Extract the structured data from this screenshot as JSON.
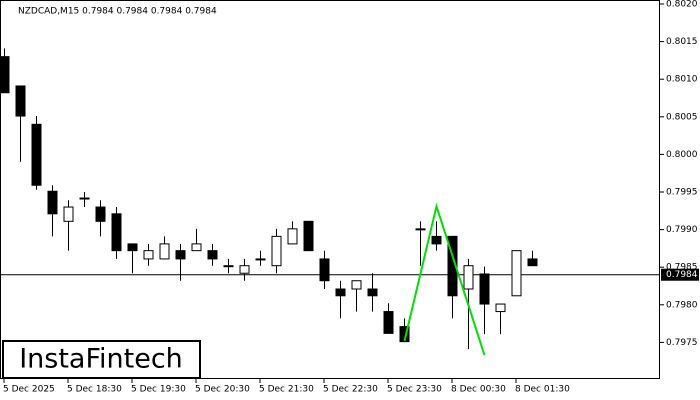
{
  "chart_data": {
    "type": "candlestick",
    "title": "NZDCAD,M15  0.7984 0.7984 0.7984 0.7984",
    "categories": [
      "5 Dec 2025",
      null,
      null,
      null,
      "5 Dec 18:30",
      null,
      null,
      null,
      "5 Dec 19:30",
      null,
      null,
      null,
      "5 Dec 20:30",
      null,
      null,
      null,
      "5 Dec 21:30",
      null,
      null,
      null,
      "5 Dec 22:30",
      null,
      null,
      null,
      "5 Dec 23:30",
      null,
      null,
      null,
      "8 Dec 00:30",
      null,
      null,
      null,
      "8 Dec 01:30",
      null
    ],
    "open": [
      0.8013,
      0.80091,
      0.8004,
      0.79951,
      0.79911,
      0.79942,
      0.7993,
      0.79921,
      0.79881,
      0.79861,
      0.79861,
      0.79872,
      0.79872,
      0.79872,
      0.79852,
      0.79842,
      0.79861,
      0.79852,
      0.79881,
      0.79911,
      0.79861,
      0.79821,
      0.79821,
      0.79821,
      0.79791,
      0.79771,
      0.79901,
      0.79891,
      0.79891,
      0.79821,
      0.79841,
      0.79791,
      0.79812,
      0.79861
    ],
    "high": [
      0.80141,
      0.80091,
      0.80051,
      0.79959,
      0.79939,
      0.7995,
      0.79939,
      0.7993,
      0.79881,
      0.79881,
      0.79891,
      0.79881,
      0.79901,
      0.79881,
      0.79861,
      0.79861,
      0.79872,
      0.79901,
      0.79911,
      0.79911,
      0.79872,
      0.79832,
      0.79832,
      0.79842,
      0.79802,
      0.79782,
      0.79911,
      0.79911,
      0.79891,
      0.79861,
      0.79851,
      0.79801,
      0.79872,
      0.79872
    ],
    "low": [
      0.80082,
      0.7999,
      0.79953,
      0.79891,
      0.79872,
      0.7993,
      0.79891,
      0.79861,
      0.79842,
      0.79852,
      0.79861,
      0.79832,
      0.79872,
      0.79852,
      0.79842,
      0.79832,
      0.79852,
      0.79842,
      0.79881,
      0.79872,
      0.79821,
      0.79782,
      0.79791,
      0.79791,
      0.79762,
      0.79751,
      0.79852,
      0.79872,
      0.79782,
      0.79741,
      0.79761,
      0.79761,
      0.79812,
      0.79852
    ],
    "close": [
      0.80082,
      0.80051,
      0.79959,
      0.79921,
      0.7993,
      0.79942,
      0.79911,
      0.79872,
      0.79872,
      0.79872,
      0.79881,
      0.79861,
      0.79881,
      0.79861,
      0.79852,
      0.79852,
      0.79861,
      0.79891,
      0.79901,
      0.79872,
      0.79832,
      0.79812,
      0.79832,
      0.79812,
      0.79762,
      0.79751,
      0.79901,
      0.79881,
      0.79812,
      0.79852,
      0.79801,
      0.79801,
      0.79872,
      0.79852
    ],
    "up_color": "#ffffff",
    "down_color": "#000000",
    "ylim": [
      0.797,
      0.802
    ],
    "yticks": [
      0.7975,
      {
        "value": 0.798,
        "label": "0.7980"
      },
      0.7985,
      {
        "value": 0.799,
        "label": "0.7990"
      },
      0.7995,
      {
        "value": 0.8,
        "label": "0.8000"
      },
      0.8005,
      {
        "value": 0.801,
        "label": "0.8010"
      },
      0.8015,
      {
        "value": 0.802,
        "label": "0.8020"
      }
    ],
    "current_price": 0.7984,
    "pattern": {
      "color": "#00e000",
      "indices": [
        25,
        27,
        30
      ],
      "values": [
        0.79752,
        0.79931,
        0.79733
      ]
    },
    "logo": "InstaFintech"
  }
}
